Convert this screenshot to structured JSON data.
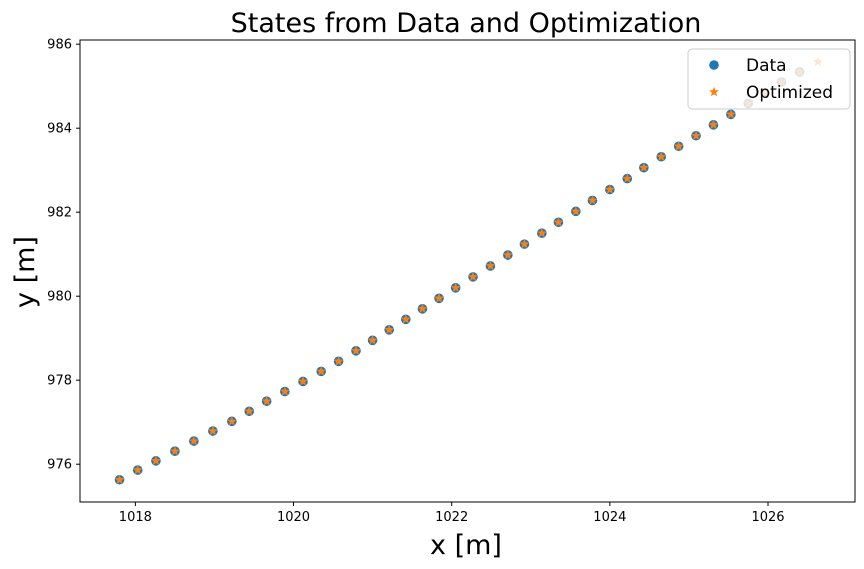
{
  "chart_data": {
    "type": "scatter",
    "title": "States from Data and Optimization",
    "xlabel": "x [m]",
    "ylabel": "y [m]",
    "xlim": [
      1017.3,
      1027.1
    ],
    "ylim": [
      975.1,
      986.1
    ],
    "xticks": [
      1018,
      1020,
      1022,
      1024,
      1026
    ],
    "yticks": [
      976,
      978,
      980,
      982,
      984,
      986
    ],
    "grid": false,
    "legend_position": "top-right",
    "series": [
      {
        "name": "Data",
        "marker": "circle",
        "color": "#1f77b4",
        "x": [
          1017.8,
          1018.03,
          1018.26,
          1018.5,
          1018.74,
          1018.98,
          1019.22,
          1019.44,
          1019.66,
          1019.89,
          1020.12,
          1020.35,
          1020.57,
          1020.79,
          1021.0,
          1021.21,
          1021.42,
          1021.63,
          1021.84,
          1022.05,
          1022.27,
          1022.49,
          1022.71,
          1022.92,
          1023.14,
          1023.35,
          1023.57,
          1023.78,
          1024.0,
          1024.22,
          1024.43,
          1024.65,
          1024.87,
          1025.09,
          1025.31,
          1025.53,
          1025.75,
          1025.96,
          1026.17,
          1026.4
        ],
        "y": [
          975.63,
          975.86,
          976.08,
          976.31,
          976.55,
          976.79,
          977.02,
          977.26,
          977.5,
          977.73,
          977.97,
          978.21,
          978.45,
          978.7,
          978.95,
          979.2,
          979.45,
          979.7,
          979.95,
          980.2,
          980.46,
          980.72,
          980.98,
          981.24,
          981.5,
          981.76,
          982.02,
          982.28,
          982.54,
          982.8,
          983.06,
          983.32,
          983.57,
          983.82,
          984.08,
          984.33,
          984.59,
          984.85,
          985.1,
          985.34
        ]
      },
      {
        "name": "Optimized",
        "marker": "star",
        "color": "#ff7f0e",
        "x": [
          1017.8,
          1018.03,
          1018.26,
          1018.5,
          1018.74,
          1018.98,
          1019.22,
          1019.44,
          1019.66,
          1019.89,
          1020.12,
          1020.35,
          1020.57,
          1020.79,
          1021.0,
          1021.21,
          1021.42,
          1021.63,
          1021.84,
          1022.05,
          1022.27,
          1022.49,
          1022.71,
          1022.92,
          1023.14,
          1023.35,
          1023.57,
          1023.78,
          1024.0,
          1024.22,
          1024.43,
          1024.65,
          1024.87,
          1025.09,
          1025.31,
          1025.53,
          1025.75,
          1025.96,
          1026.17,
          1026.4,
          1026.63
        ],
        "y": [
          975.63,
          975.86,
          976.08,
          976.31,
          976.55,
          976.79,
          977.02,
          977.26,
          977.5,
          977.73,
          977.97,
          978.21,
          978.45,
          978.7,
          978.95,
          979.2,
          979.45,
          979.7,
          979.95,
          980.2,
          980.46,
          980.72,
          980.98,
          981.24,
          981.5,
          981.76,
          982.02,
          982.28,
          982.54,
          982.8,
          983.06,
          983.32,
          983.57,
          983.82,
          984.08,
          984.33,
          984.59,
          984.85,
          985.1,
          985.34,
          985.58
        ]
      }
    ]
  }
}
